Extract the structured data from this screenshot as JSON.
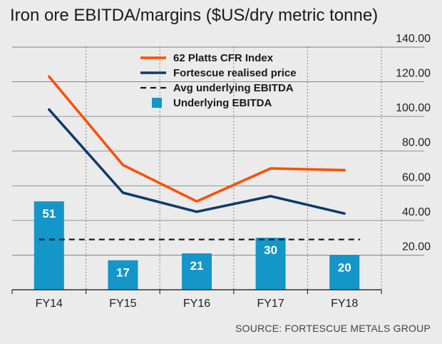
{
  "title": "Iron ore EBITDA/margins ($US/dry metric tonne)",
  "source": "SOURCE: FORTESCUE METALS GROUP",
  "colors": {
    "platts": "#ff4d00",
    "fortescue": "#0e3a6e",
    "avg": "#111111",
    "bars": "#1496c8",
    "grid": "#777777",
    "axis": "#333333"
  },
  "chart_data": {
    "type": "bar",
    "categories": [
      "FY14",
      "FY15",
      "FY16",
      "FY17",
      "FY18"
    ],
    "ylim": [
      0,
      140
    ],
    "yticks": [
      20,
      40,
      60,
      80,
      100,
      120,
      140
    ],
    "ytick_labels": [
      "20.00",
      "40.00",
      "60.00",
      "80.00",
      "100.00",
      "120.00",
      "140.00"
    ],
    "legend_position": "top",
    "grid": true,
    "series": [
      {
        "name": "62 Platts CFR Index",
        "kind": "line",
        "values": [
          123,
          72,
          51,
          70,
          69
        ]
      },
      {
        "name": "Fortescue realised price",
        "kind": "line",
        "values": [
          104,
          56,
          45,
          54,
          44
        ]
      },
      {
        "name": "Avg underlying EBITDA",
        "kind": "dashed",
        "values": [
          29,
          29,
          29,
          29,
          29
        ]
      },
      {
        "name": "Underlying EBITDA",
        "kind": "bar",
        "values": [
          51,
          17,
          21,
          30,
          20
        ],
        "labels": [
          "51",
          "17",
          "21",
          "30",
          "20"
        ]
      }
    ]
  }
}
